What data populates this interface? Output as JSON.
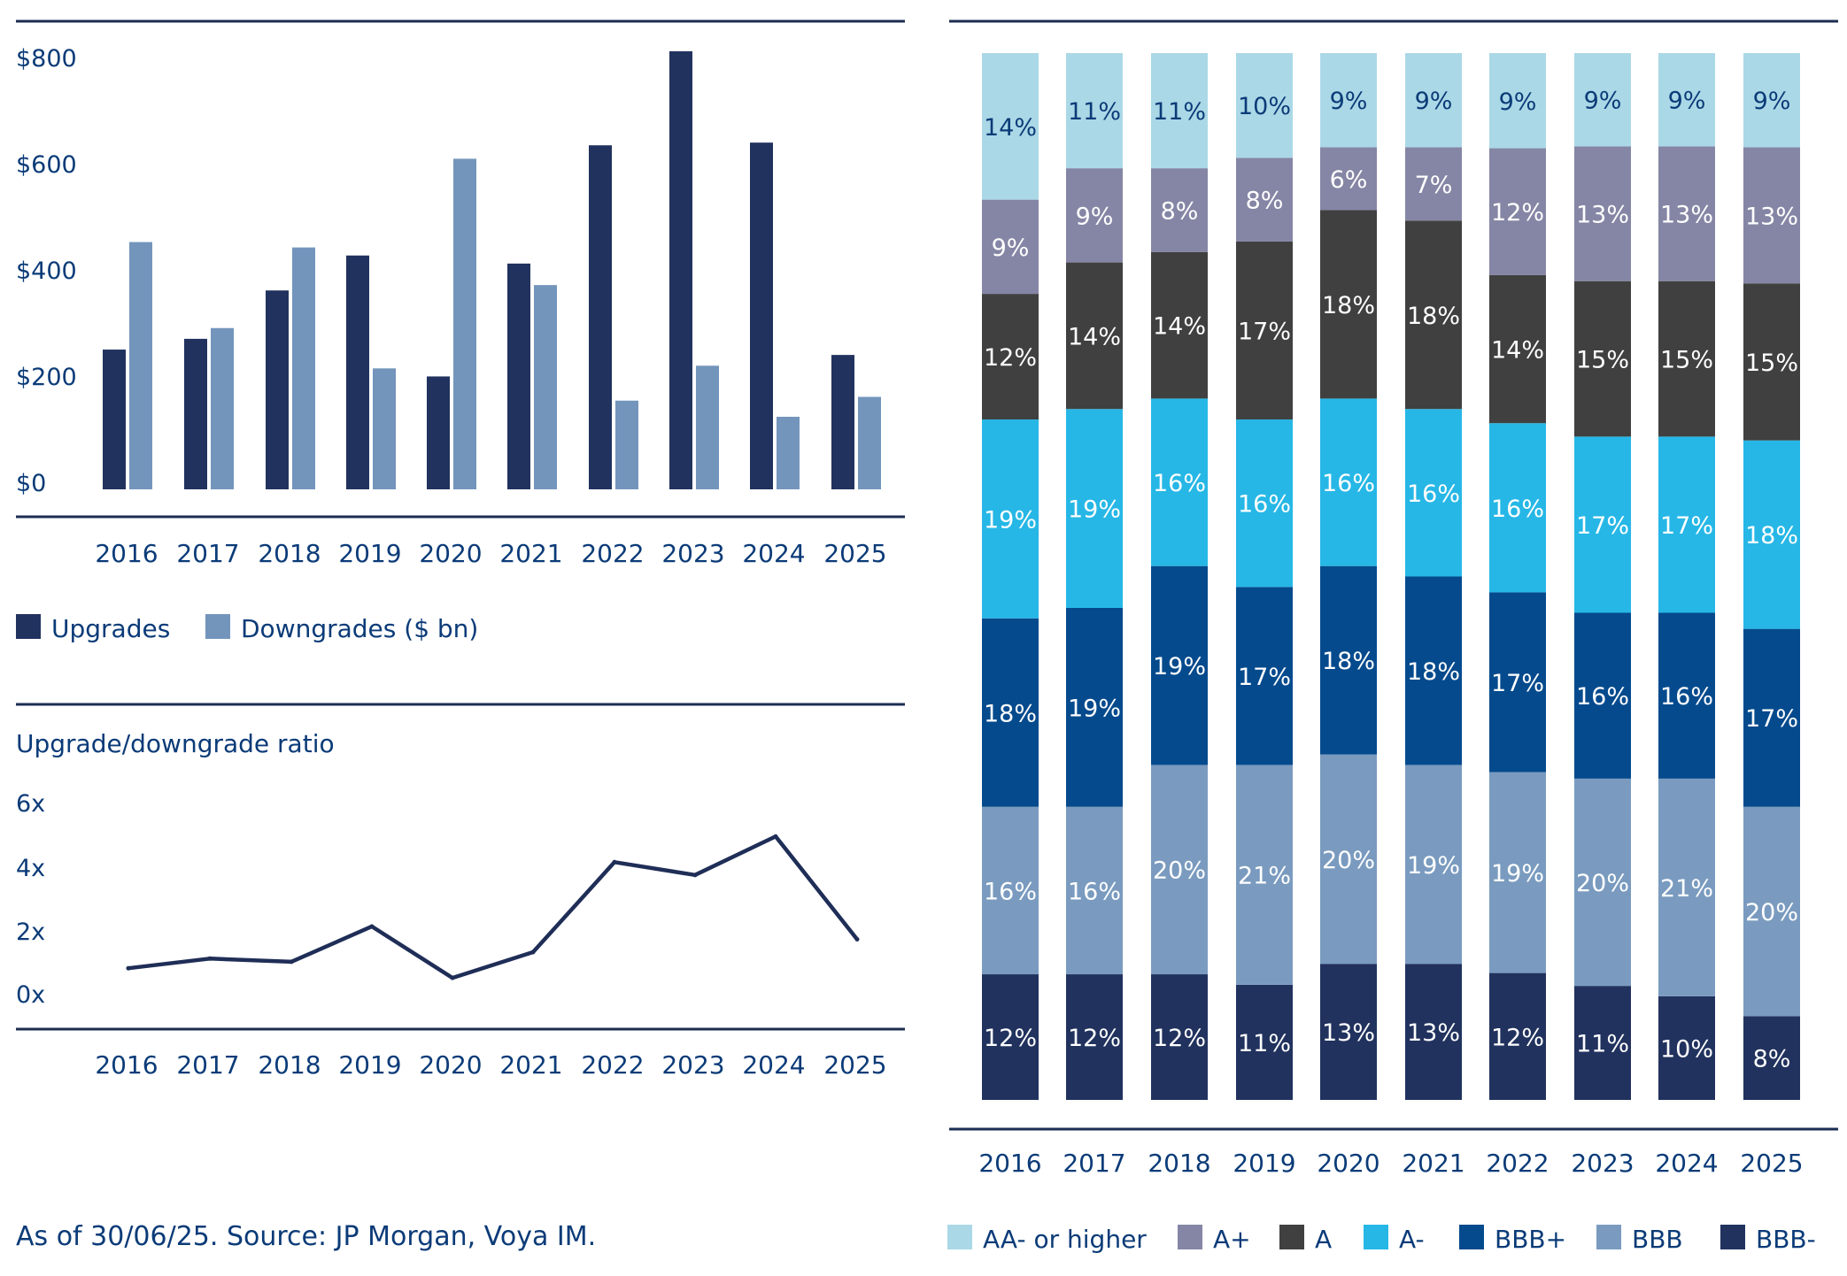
{
  "colors": {
    "navy": "#21325e",
    "upgrades": "#21325e",
    "downgrades": "#7395bc",
    "axis_text": "#0b3b78",
    "rule": "#1c2d52",
    "line": "#1f2e57"
  },
  "source_note": "As of 30/06/25. Source: JP Morgan, Voya IM.",
  "chart_data": [
    {
      "type": "bar",
      "categories": [
        "2016",
        "2017",
        "2018",
        "2019",
        "2020",
        "2021",
        "2022",
        "2023",
        "2024",
        "2025"
      ],
      "series": [
        {
          "name": "Upgrades",
          "color": "#21325e",
          "values": [
            260,
            280,
            370,
            435,
            210,
            420,
            640,
            815,
            645,
            250
          ]
        },
        {
          "name": "Downgrades ($ bn)",
          "color": "#7395bc",
          "values": [
            460,
            300,
            450,
            225,
            615,
            380,
            165,
            230,
            135,
            172
          ]
        }
      ],
      "yticks": [
        "$0",
        "$200",
        "$400",
        "$600",
        "$800"
      ],
      "ylim": [
        0,
        820
      ],
      "legend_position": "bottom-left"
    },
    {
      "type": "line",
      "title": "Upgrade/downgrade ratio",
      "categories": [
        "2016",
        "2017",
        "2018",
        "2019",
        "2020",
        "2021",
        "2022",
        "2023",
        "2024",
        "2025"
      ],
      "values": [
        0.6,
        0.9,
        0.8,
        1.9,
        0.3,
        1.1,
        3.9,
        3.5,
        4.7,
        1.5
      ],
      "yticks": [
        "0x",
        "2x",
        "4x",
        "6x"
      ],
      "ylim": [
        0,
        6
      ]
    },
    {
      "type": "bar",
      "stacked": true,
      "categories": [
        "2016",
        "2017",
        "2018",
        "2019",
        "2020",
        "2021",
        "2022",
        "2023",
        "2024",
        "2025"
      ],
      "series": [
        {
          "name": "BBB-",
          "color": "#21325e",
          "text_color": "#ffffff",
          "values": [
            12,
            12,
            12,
            11,
            13,
            13,
            12,
            11,
            10,
            8
          ]
        },
        {
          "name": "BBB",
          "color": "#7a9bbf",
          "text_color": "#ffffff",
          "values": [
            16,
            16,
            20,
            21,
            20,
            19,
            19,
            20,
            21,
            20
          ]
        },
        {
          "name": "BBB+",
          "color": "#054a8d",
          "text_color": "#ffffff",
          "values": [
            18,
            19,
            19,
            17,
            18,
            18,
            17,
            16,
            16,
            17
          ]
        },
        {
          "name": "A-",
          "color": "#26b7e6",
          "text_color": "#ffffff",
          "values": [
            19,
            19,
            16,
            16,
            16,
            16,
            16,
            17,
            17,
            18
          ]
        },
        {
          "name": "A",
          "color": "#404040",
          "text_color": "#ffffff",
          "values": [
            12,
            14,
            14,
            17,
            18,
            18,
            14,
            15,
            15,
            15
          ]
        },
        {
          "name": "A+",
          "color": "#8586a5",
          "text_color": "#ffffff",
          "values": [
            9,
            9,
            8,
            8,
            6,
            7,
            12,
            13,
            13,
            13
          ]
        },
        {
          "name": "AA- or higher",
          "color": "#abd8e6",
          "text_color": "#0b3b78",
          "values": [
            14,
            11,
            11,
            10,
            9,
            9,
            9,
            9,
            9,
            9
          ]
        }
      ],
      "data_labels": [
        [
          "12%",
          "16%",
          "18%",
          "19%",
          "12%",
          "9%",
          "14%"
        ],
        [
          "12%",
          "16%",
          "19%",
          "19%",
          "14%",
          "9%",
          "11%"
        ],
        [
          "12%",
          "20%",
          "19%",
          "16%",
          "14%",
          "8%",
          "11%"
        ],
        [
          "11%",
          "21%",
          "17%",
          "16%",
          "17%",
          "8%",
          "10%"
        ],
        [
          "13%",
          "20%",
          "18%",
          "16%",
          "18%",
          "6%",
          "9%"
        ],
        [
          "13%",
          "19%",
          "18%",
          "16%",
          "18%",
          "7%",
          "9%"
        ],
        [
          "12%",
          "19%",
          "17%",
          "16%",
          "14%",
          "12%",
          "9%"
        ],
        [
          "11%",
          "20%",
          "16%",
          "17%",
          "15%",
          "13%",
          "9%"
        ],
        [
          "10%",
          "21%",
          "16%",
          "17%",
          "15%",
          "13%",
          "9%"
        ],
        [
          "8%",
          "20%",
          "17%",
          "18%",
          "15%",
          "13%",
          "9%"
        ]
      ],
      "legend_order": [
        "AA- or higher",
        "A+",
        "A",
        "A-",
        "BBB+",
        "BBB",
        "BBB-"
      ],
      "legend_position": "bottom"
    }
  ]
}
